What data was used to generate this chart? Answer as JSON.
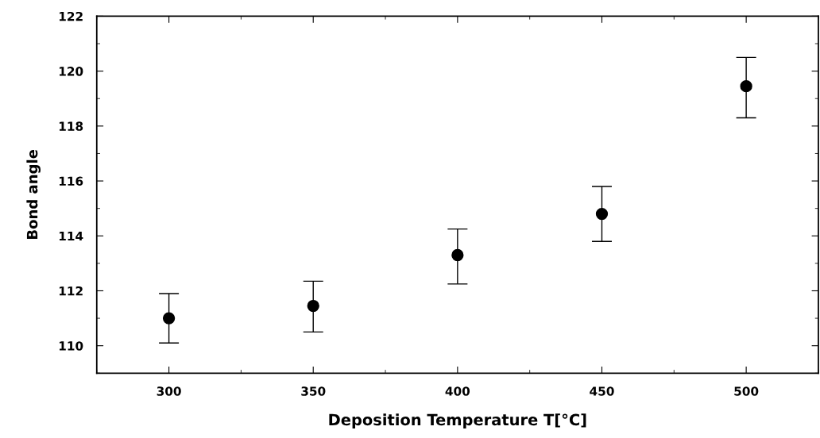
{
  "chart_data": {
    "type": "scatter",
    "xlabel": "Deposition Temperature T[°C]",
    "ylabel": "Bond angle",
    "x": [
      300,
      350,
      400,
      450,
      500
    ],
    "values": [
      111.0,
      111.45,
      113.3,
      114.8,
      119.45
    ],
    "errors": [
      [
        110.1,
        111.9
      ],
      [
        110.5,
        112.35
      ],
      [
        112.25,
        114.25
      ],
      [
        113.8,
        115.8
      ],
      [
        118.3,
        120.5
      ]
    ],
    "color": "#000000",
    "marker": "circle",
    "grid": false,
    "legend": false,
    "xlim": [
      275,
      525
    ],
    "ylim": [
      109,
      122
    ],
    "xticks": [
      300,
      350,
      400,
      450,
      500
    ],
    "yticks": [
      110,
      112,
      114,
      116,
      118,
      120,
      122
    ]
  }
}
